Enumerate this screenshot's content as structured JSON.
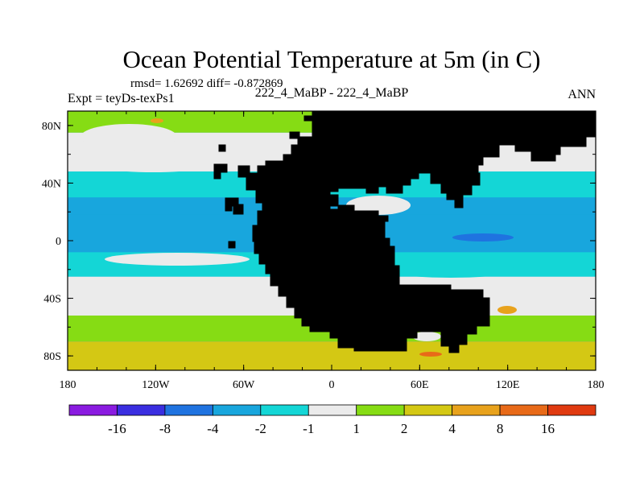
{
  "chart_data": {
    "type": "contour-map",
    "title": "Ocean Potential Temperature at 5m (in C)",
    "stats": "rmsd= 1.62692 diff= -0.872869",
    "experiment": "Expt = teyDs-texPs1",
    "comparison": "222_4_MaBP - 222_4_MaBP",
    "season": "ANN",
    "x_axis": {
      "range": [
        -180,
        180
      ],
      "ticks": [
        {
          "value": -180,
          "label": "180"
        },
        {
          "value": -120,
          "label": "120W"
        },
        {
          "value": -60,
          "label": "60W"
        },
        {
          "value": 0,
          "label": "0"
        },
        {
          "value": 60,
          "label": "60E"
        },
        {
          "value": 120,
          "label": "120E"
        },
        {
          "value": 180,
          "label": "180"
        }
      ]
    },
    "y_axis": {
      "range": [
        -90,
        90
      ],
      "ticks": [
        {
          "value": 80,
          "label": "80N"
        },
        {
          "value": 40,
          "label": "40N"
        },
        {
          "value": 0,
          "label": "0"
        },
        {
          "value": -40,
          "label": "40S"
        },
        {
          "value": -80,
          "label": "80S"
        }
      ]
    },
    "colorbar": {
      "colors": [
        "#8a1be0",
        "#3a2ee0",
        "#1f73e0",
        "#18a6dd",
        "#14d6d6",
        "#ebebeb",
        "#86dc14",
        "#d4c814",
        "#e8a21c",
        "#e86a18",
        "#e03a10"
      ],
      "labels": [
        "-16",
        "-8",
        "-4",
        "-2",
        "-1",
        "1",
        "2",
        "4",
        "8",
        "16"
      ]
    },
    "land_color": "#9a9a9a",
    "field_bands": [
      {
        "lat_top": 90,
        "lat_bottom": 75,
        "level": "1 to 2",
        "color": "#86dc14"
      },
      {
        "lat_top": 75,
        "lat_bottom": 48,
        "level": "-1 to 1",
        "color": "#ebebeb"
      },
      {
        "lat_top": 48,
        "lat_bottom": 30,
        "level": "-2 to -1",
        "color": "#14d6d6"
      },
      {
        "lat_top": 30,
        "lat_bottom": 18,
        "level": "-4 to -2",
        "color": "#18a6dd"
      },
      {
        "lat_top": 18,
        "lat_bottom": -8,
        "level": "-4 to -2",
        "color": "#18a6dd"
      },
      {
        "lat_top": -8,
        "lat_bottom": -25,
        "level": "-2 to -1",
        "color": "#14d6d6"
      },
      {
        "lat_top": -25,
        "lat_bottom": -52,
        "level": "-1 to 1",
        "color": "#ebebeb"
      },
      {
        "lat_top": -52,
        "lat_bottom": -70,
        "level": "1 to 2",
        "color": "#86dc14"
      },
      {
        "lat_top": -70,
        "lat_bottom": -90,
        "level": "2 to 4",
        "color": "#d4c814"
      }
    ]
  }
}
